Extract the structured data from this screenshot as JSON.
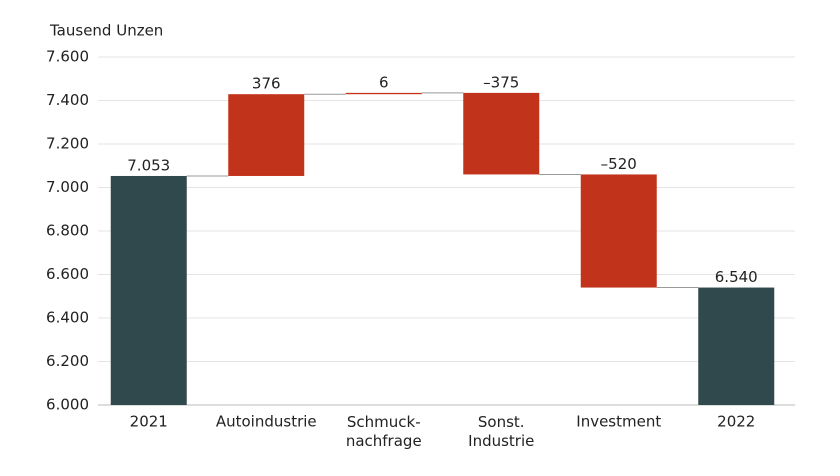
{
  "chart_data": {
    "type": "waterfall",
    "y_axis_label": "Tausend Unzen",
    "categories": [
      "2021",
      "Autoindustrie",
      "Schmuck-\nnachfrage",
      "Sonst.\nIndustrie",
      "Investment",
      "2022"
    ],
    "values": [
      7053,
      376,
      6,
      -375,
      -520,
      6540
    ],
    "value_labels": [
      "7.053",
      "376",
      "6",
      "–375",
      "–520",
      "6.540"
    ],
    "is_total": [
      true,
      false,
      false,
      false,
      false,
      true
    ],
    "total_color": "#30494c",
    "change_color": "#c1331a",
    "ylim": [
      6000,
      7600
    ],
    "yticks": [
      {
        "value": 6000,
        "label": "6.000"
      },
      {
        "value": 6200,
        "label": "6.200"
      },
      {
        "value": 6400,
        "label": "6.400"
      },
      {
        "value": 6600,
        "label": "6.600"
      },
      {
        "value": 6800,
        "label": "6.800"
      },
      {
        "value": 7000,
        "label": "7.000"
      },
      {
        "value": 7200,
        "label": "7.200"
      },
      {
        "value": 7400,
        "label": "7.400"
      },
      {
        "value": 7600,
        "label": "7.600"
      }
    ],
    "grid": true
  }
}
